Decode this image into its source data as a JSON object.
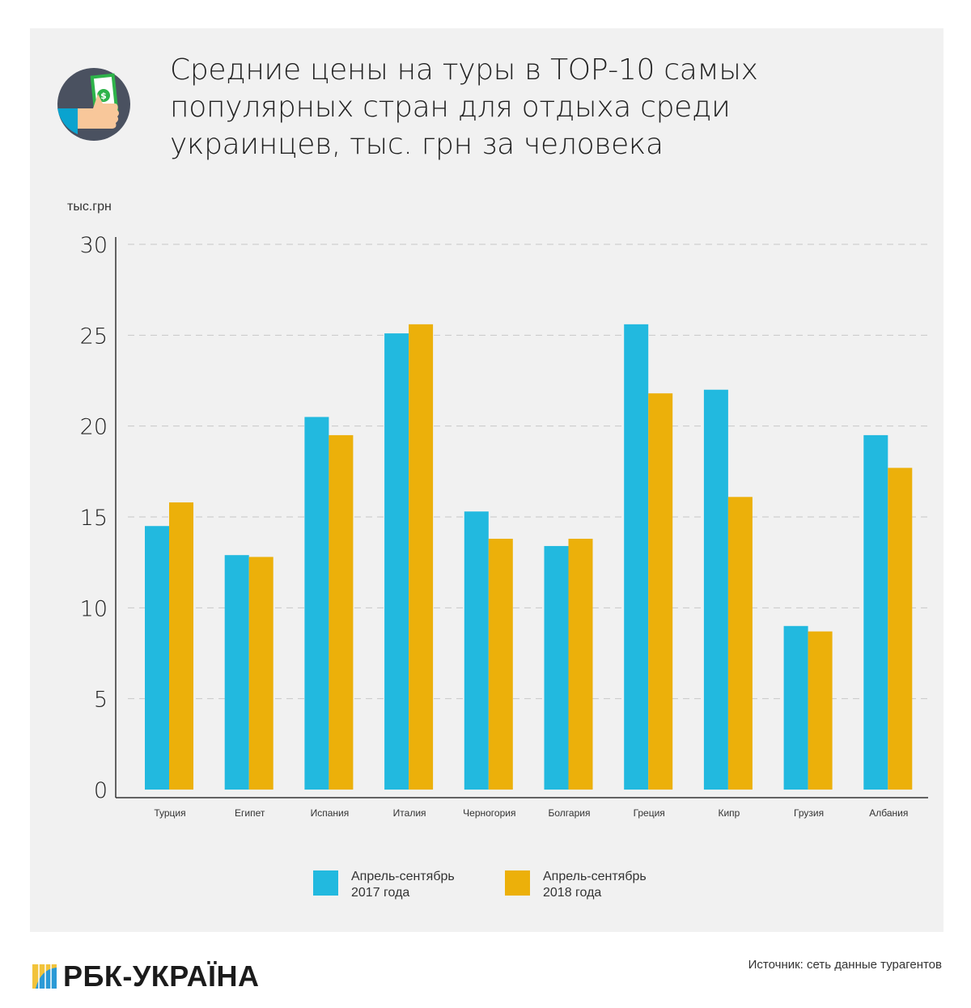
{
  "title": "Средние цены на туры в ТОР-10 самых популярных стран для отдыха среди украинцев, тыс. грн за человека",
  "icon": "money-in-hand-icon",
  "chart_data": {
    "type": "bar",
    "ylabel": "тыс.грн",
    "ylim": [
      0,
      30
    ],
    "yticks": [
      0,
      5,
      10,
      15,
      20,
      25,
      30
    ],
    "grid": true,
    "categories": [
      "Турция",
      "Египет",
      "Испания",
      "Италия",
      "Черногория",
      "Болгария",
      "Греция",
      "Кипр",
      "Грузия",
      "Албания"
    ],
    "series": [
      {
        "name": "Апрель-сентябрь 2017 года",
        "color": "#22b9df",
        "values": [
          14.5,
          12.9,
          20.5,
          25.1,
          15.3,
          13.4,
          25.6,
          22.0,
          9.0,
          19.5
        ]
      },
      {
        "name": "Апрель-сентябрь 2018 года",
        "color": "#ecb00a",
        "values": [
          15.8,
          12.8,
          19.5,
          25.6,
          13.8,
          13.8,
          21.8,
          16.1,
          8.7,
          17.7
        ]
      }
    ],
    "legend": "bottom"
  },
  "legend": {
    "s1_line1": "Апрель-сентябрь",
    "s1_line2": "2017 года",
    "s2_line1": "Апрель-сентябрь",
    "s2_line2": "2018 года"
  },
  "footer": {
    "logo": "РБК-УКРАЇНА",
    "source": "Источник: сеть данные турагентов"
  }
}
